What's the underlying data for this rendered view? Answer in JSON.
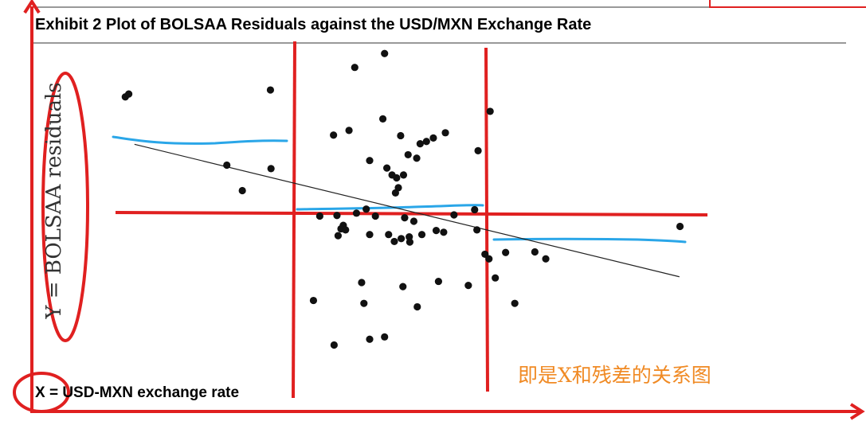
{
  "exhibit": {
    "title": "Exhibit 2  Plot of BOLSAA Residuals against the USD/MXN Exchange Rate",
    "xlabel": "X = USD-MXN exchange rate",
    "ylabel": "Y = BOLSAA residuals"
  },
  "annotation": {
    "note_cn": "即是X和残差的关系图",
    "colors": {
      "red": "#e02020",
      "blue": "#2aa6e8",
      "orange": "#f08a24"
    }
  },
  "chart_data": {
    "type": "scatter",
    "title": "Exhibit 2  Plot of BOLSAA Residuals against the USD/MXN Exchange Rate",
    "xlabel": "X = USD-MXN exchange rate",
    "ylabel": "Y = BOLSAA residuals",
    "xlim": [
      0,
      100
    ],
    "ylim": [
      -30,
      30
    ],
    "grid": false,
    "legend": "none",
    "points": [
      {
        "x": 2.4,
        "y": 20.4
      },
      {
        "x": 3.0,
        "y": 20.9
      },
      {
        "x": 27.7,
        "y": 21.6
      },
      {
        "x": 20.1,
        "y": 8.6
      },
      {
        "x": 22.8,
        "y": 4.2
      },
      {
        "x": 27.8,
        "y": 8.0
      },
      {
        "x": 42.4,
        "y": 25.5
      },
      {
        "x": 47.6,
        "y": 27.9
      },
      {
        "x": 41.4,
        "y": 14.6
      },
      {
        "x": 38.7,
        "y": 13.8
      },
      {
        "x": 45.0,
        "y": 9.4
      },
      {
        "x": 47.3,
        "y": 16.6
      },
      {
        "x": 50.4,
        "y": 13.7
      },
      {
        "x": 51.7,
        "y": 10.4
      },
      {
        "x": 53.8,
        "y": 12.3
      },
      {
        "x": 54.9,
        "y": 12.7
      },
      {
        "x": 56.1,
        "y": 13.3
      },
      {
        "x": 58.2,
        "y": 14.2
      },
      {
        "x": 53.2,
        "y": 9.8
      },
      {
        "x": 48.0,
        "y": 8.1
      },
      {
        "x": 48.9,
        "y": 6.9
      },
      {
        "x": 49.7,
        "y": 6.4
      },
      {
        "x": 50.9,
        "y": 6.9
      },
      {
        "x": 50.0,
        "y": 4.7
      },
      {
        "x": 49.5,
        "y": 3.8
      },
      {
        "x": 63.9,
        "y": 11.1
      },
      {
        "x": 66.0,
        "y": 17.9
      },
      {
        "x": 63.3,
        "y": 0.9
      },
      {
        "x": 59.7,
        "y": 0.0
      },
      {
        "x": 44.4,
        "y": 1.0
      },
      {
        "x": 42.7,
        "y": 0.3
      },
      {
        "x": 40.4,
        "y": -1.8
      },
      {
        "x": 40.0,
        "y": -2.4
      },
      {
        "x": 40.8,
        "y": -2.6
      },
      {
        "x": 39.5,
        "y": -3.6
      },
      {
        "x": 45.0,
        "y": -3.4
      },
      {
        "x": 48.3,
        "y": -3.4
      },
      {
        "x": 49.3,
        "y": -4.6
      },
      {
        "x": 50.5,
        "y": -4.1
      },
      {
        "x": 51.9,
        "y": -3.8
      },
      {
        "x": 52.0,
        "y": -4.7
      },
      {
        "x": 54.1,
        "y": -3.4
      },
      {
        "x": 56.6,
        "y": -2.7
      },
      {
        "x": 57.9,
        "y": -3.0
      },
      {
        "x": 52.7,
        "y": -1.1
      },
      {
        "x": 51.1,
        "y": -0.5
      },
      {
        "x": 36.3,
        "y": -0.2
      },
      {
        "x": 39.3,
        "y": -0.1
      },
      {
        "x": 46.0,
        "y": -0.2
      },
      {
        "x": 63.7,
        "y": -2.6
      },
      {
        "x": 65.1,
        "y": -6.8
      },
      {
        "x": 65.8,
        "y": -7.6
      },
      {
        "x": 68.7,
        "y": -6.5
      },
      {
        "x": 73.8,
        "y": -6.4
      },
      {
        "x": 75.7,
        "y": -7.6
      },
      {
        "x": 66.9,
        "y": -10.9
      },
      {
        "x": 62.2,
        "y": -12.2
      },
      {
        "x": 57.0,
        "y": -11.5
      },
      {
        "x": 50.8,
        "y": -12.4
      },
      {
        "x": 43.6,
        "y": -11.7
      },
      {
        "x": 44.0,
        "y": -15.3
      },
      {
        "x": 53.3,
        "y": -15.9
      },
      {
        "x": 70.3,
        "y": -15.3
      },
      {
        "x": 35.2,
        "y": -14.8
      },
      {
        "x": 38.8,
        "y": -22.5
      },
      {
        "x": 45.0,
        "y": -21.5
      },
      {
        "x": 47.6,
        "y": -21.1
      },
      {
        "x": 99.1,
        "y": -2.0
      }
    ],
    "trend_line": {
      "x": [
        4.0,
        99.0
      ],
      "y": [
        12.2,
        -10.7
      ]
    }
  }
}
